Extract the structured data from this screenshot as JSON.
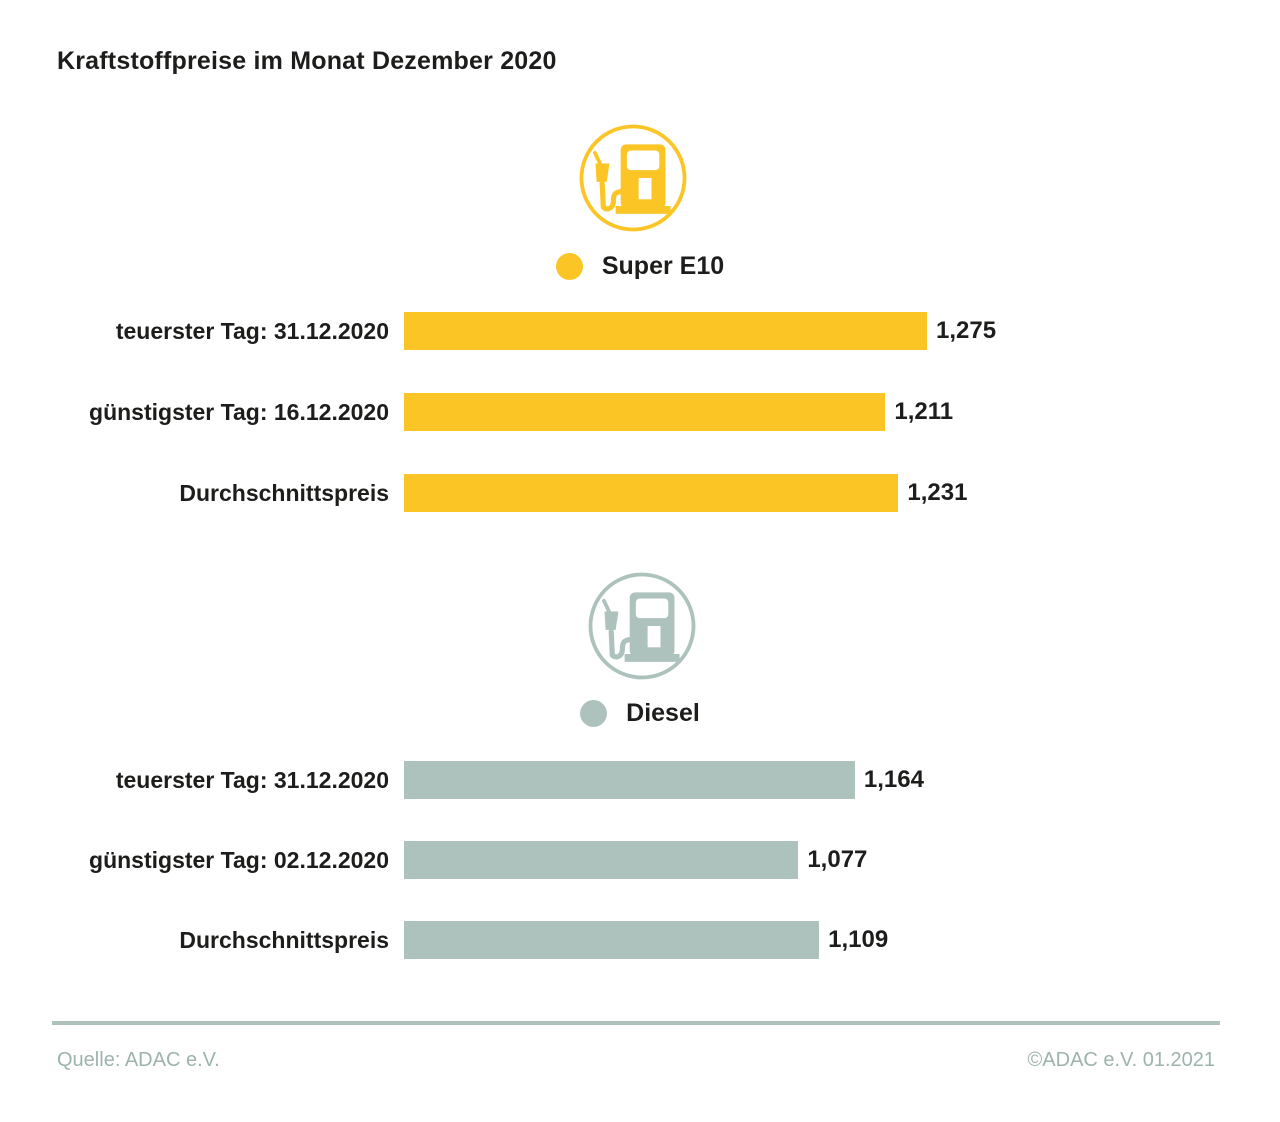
{
  "title": "Kraftstoffpreise im Monat Dezember 2020",
  "colors": {
    "super_e10": "#FBC525",
    "diesel": "#AEC2BD",
    "text": "#1D1D1B",
    "footer_text": "#9DB3AE",
    "divider": "#AEC2BD",
    "background": "#FFFFFF"
  },
  "chart_data": [
    {
      "type": "bar",
      "title": "Super E10",
      "legend": "Super E10",
      "icon": "fuel-pump-icon",
      "color": "#FBC525",
      "orientation": "horizontal",
      "categories": [
        "teuerster Tag: 31.12.2020",
        "günstigster Tag: 16.12.2020",
        "Durchschnittspreis"
      ],
      "values": [
        1.275,
        1.211,
        1.231
      ],
      "value_labels": [
        "1,275",
        "1,211",
        "1,231"
      ],
      "axis": {
        "min": 0.47,
        "max": 1.275,
        "gridlines": false,
        "ticks": false
      },
      "legend_position": "top-center",
      "value_label_position": "bar-end"
    },
    {
      "type": "bar",
      "title": "Diesel",
      "legend": "Diesel",
      "icon": "fuel-pump-icon",
      "color": "#AEC2BD",
      "orientation": "horizontal",
      "categories": [
        "teuerster Tag: 31.12.2020",
        "günstigster Tag: 02.12.2020",
        "Durchschnittspreis"
      ],
      "values": [
        1.164,
        1.077,
        1.109
      ],
      "value_labels": [
        "1,164",
        "1,077",
        "1,109"
      ],
      "axis": {
        "min": 0.47,
        "max": 1.275,
        "gridlines": false,
        "ticks": false
      },
      "legend_position": "top-center",
      "value_label_position": "bar-end"
    }
  ],
  "footer": {
    "source": "Quelle: ADAC e.V.",
    "copyright": "©ADAC e.V. 01.2021"
  }
}
